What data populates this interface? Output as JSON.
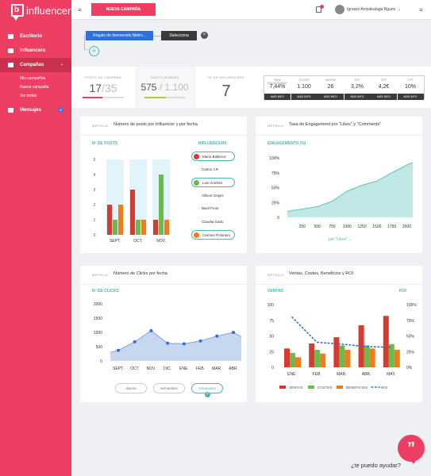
{
  "app": {
    "name": "influencer",
    "logo_glyph": "b"
  },
  "sidebar": {
    "items": [
      {
        "label": "Escritorio",
        "icon": "dashboard-icon"
      },
      {
        "label": "Influencers",
        "icon": "users-icon"
      },
      {
        "label": "Campañas",
        "icon": "megaphone-icon"
      },
      {
        "label": "Mensajes",
        "icon": "message-icon",
        "badge": "2"
      }
    ],
    "subitems": [
      "Mis campañas",
      "Nueva campaña",
      "Ver todas"
    ]
  },
  "topbar": {
    "new_campaign": "NUEVA CAMPAÑA",
    "user_name": "Ignacio Arrizabalaga Rguez.",
    "accent": "#ec3f63"
  },
  "filters": {
    "campaign_chip": "Regalo de bienvenido Metro...",
    "select_chip": "Selecciona"
  },
  "stats": {
    "posts": {
      "label": "POSTS DE CAMPAÑA",
      "value": "17",
      "total": "35"
    },
    "spend": {
      "label": "GASTO (EUROS)",
      "value": "575",
      "total": "1.100"
    },
    "influencers": {
      "label": "Nº DE INFLUENCERS",
      "value": "7"
    },
    "metrics": [
      {
        "head": "TASA ENGAGEMENT",
        "value": "7,44%",
        "btn": "MÁS INFO"
      },
      {
        "head": "CLICKS",
        "value": "1.100",
        "btn": "MÁS INFO"
      },
      {
        "head": "VENTAS",
        "value": "26",
        "btn": "MÁS INFO"
      },
      {
        "head": "ROI",
        "value": "3,2%",
        "btn": "MÁS INFO"
      },
      {
        "head": "CPC",
        "value": "4,2€",
        "btn": "MÁS INFO"
      },
      {
        "head": "CTR",
        "value": "10%",
        "btn": "MÁS INFO"
      }
    ]
  },
  "cards": {
    "posts": {
      "kicker": "MÉTRICA",
      "title": "Número de posts por Influencer y por fecha",
      "label": "Nº DE POSTS",
      "influencers_label": "INFLUENCERS"
    },
    "engagement": {
      "kicker": "MÉTRICA",
      "title": "Tasa de Engagement por \"Likes\" y \"Comments\"",
      "label": "ENGAGEMENTS (%)",
      "selector": "por \"Likes\""
    },
    "clicks": {
      "kicker": "MÉTRICA",
      "title": "Número de Clicks por fecha",
      "label": "Nº DE CLICKS",
      "pills": [
        "diarios",
        "semanales",
        "mensuales"
      ]
    },
    "sales": {
      "kicker": "MÉTRICA",
      "title": "Ventas, Costes, Beneficios y ROI",
      "label_left": "VENTAS",
      "label_right": "ROI"
    }
  },
  "influencer_list": [
    {
      "name": "Mario Ballenos",
      "state": "selected",
      "color": "#d73a2e"
    },
    {
      "name": "Carlos J.R",
      "state": "none"
    },
    {
      "name": "Luis Aniches",
      "state": "selected",
      "color": "#6cba4b"
    },
    {
      "name": "Allison Grajes",
      "state": "none"
    },
    {
      "name": "Basil Frost",
      "state": "none"
    },
    {
      "name": "Claudia Gado",
      "state": "none"
    },
    {
      "name": "Carmen Polonero",
      "state": "selected",
      "color": "#f07c1e"
    }
  ],
  "chart_data": [
    {
      "type": "bar",
      "categories": [
        "SEPT.",
        "OCT.",
        "NOV."
      ],
      "ylim": [
        0,
        5
      ],
      "series": [
        {
          "values": [
            2,
            3,
            1
          ]
        },
        {
          "values": [
            1,
            1,
            4
          ]
        },
        {
          "values": [
            2,
            1,
            1
          ]
        }
      ],
      "colors": [
        "#d73a2e",
        "#6cba4b",
        "#f07c1e"
      ]
    },
    {
      "type": "area",
      "x": [
        250,
        500,
        750,
        1000,
        1250,
        1500,
        1750,
        2000
      ],
      "y": [
        14,
        18,
        27,
        44,
        54,
        61,
        75,
        88
      ],
      "xlim": [
        0,
        2100
      ],
      "ylim": [
        0,
        100
      ],
      "yticks": [
        "0",
        "25%",
        "50%",
        "75%",
        "100%"
      ],
      "xticks": [
        250,
        500,
        750,
        1000,
        1250,
        1500,
        1750,
        2000
      ]
    },
    {
      "type": "area",
      "categories": [
        "SEPT.",
        "OCT.",
        "NOV.",
        "DIC.",
        "ENE.",
        "FEB.",
        "MAR.",
        "ABR."
      ],
      "values": [
        370,
        670,
        1060,
        620,
        600,
        700,
        870,
        1000
      ],
      "ylim": [
        0,
        2000
      ],
      "yticks": [
        0,
        500,
        1000,
        1500,
        2000
      ]
    },
    {
      "type": "bar",
      "categories": [
        "ENE.",
        "FEB.",
        "MAR.",
        "ABR.",
        "MAY."
      ],
      "ylim": [
        0,
        100
      ],
      "y2lim": [
        0,
        100
      ],
      "yticks_left": [
        0,
        25,
        50,
        75,
        100
      ],
      "yticks_right": [
        "0%",
        "25%",
        "50%",
        "75%",
        "100%"
      ],
      "series": [
        {
          "name": "VENTAS",
          "values": [
            30,
            38,
            48,
            67,
            82
          ],
          "color": "#d73a2e"
        },
        {
          "name": "COSTES",
          "values": [
            23,
            28,
            35,
            35,
            37
          ],
          "color": "#6cba4b"
        },
        {
          "name": "BENEFICIOS",
          "values": [
            16,
            22,
            28,
            30,
            28
          ],
          "color": "#f07c1e"
        },
        {
          "name": "ROI",
          "type": "line",
          "values": [
            80,
            40,
            37,
            33,
            32
          ],
          "color": "#2f6fd6"
        }
      ]
    }
  ],
  "help": {
    "text": "¿te puedo ayudar?"
  }
}
